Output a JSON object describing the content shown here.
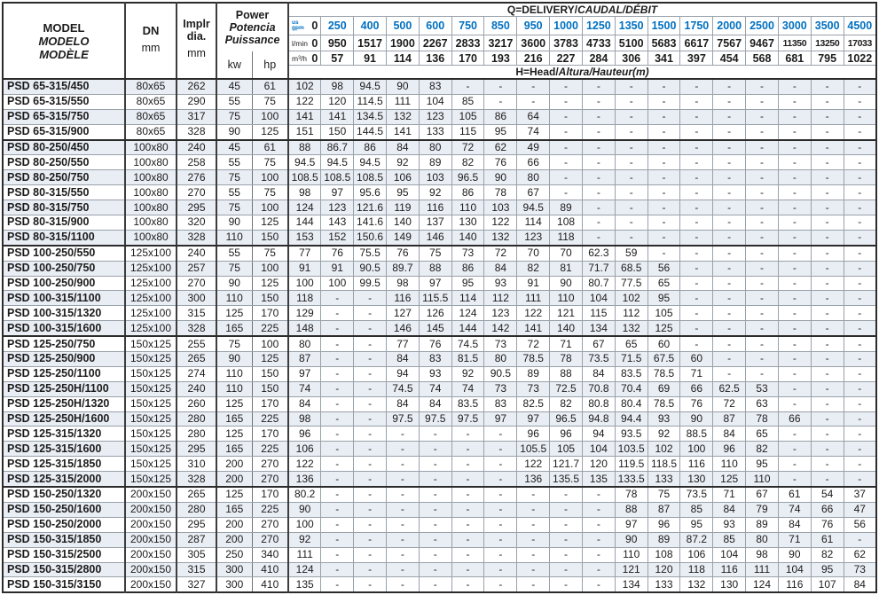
{
  "colors": {
    "accent_blue": "#0070c0",
    "row_shade": "#e9edf4",
    "border_dark": "#2b2b2b",
    "border_light": "#99a1aa"
  },
  "header": {
    "model_line1": "MODEL",
    "model_line2": "MODELO",
    "model_line3": "MODÈLE",
    "dn_label": "DN",
    "dn_unit": "mm",
    "implr_line1": "Implr",
    "implr_line2": "dia.",
    "implr_unit": "mm",
    "power_line1": "Power",
    "power_line2": "Potencia",
    "power_line3": "Puissance",
    "kw_label": "kw",
    "hp_label": "hp",
    "q_title_plain": "Q=DELIVERY/",
    "q_title_italic": "CAUDAL/DÉBIT",
    "h_title_plain": "H=Head/",
    "h_title_italic": "Altura/Hauteur",
    "h_title_suffix": "(m)",
    "unit_rows": [
      {
        "label_top": "us",
        "label_bottom": "gpm",
        "zero": "0",
        "values": [
          "250",
          "400",
          "500",
          "600",
          "750",
          "850",
          "950",
          "1000",
          "1250",
          "1350",
          "1500",
          "1750",
          "2000",
          "2500",
          "3000",
          "3500",
          "4500"
        ]
      },
      {
        "label": "l/min",
        "zero": "0",
        "values": [
          "950",
          "1517",
          "1900",
          "2267",
          "2833",
          "3217",
          "3600",
          "3783",
          "4733",
          "5100",
          "5683",
          "6617",
          "7567",
          "9467",
          "11350",
          "13250",
          "17033"
        ]
      },
      {
        "label": "m³/h",
        "zero": "0",
        "values": [
          "57",
          "91",
          "114",
          "136",
          "170",
          "193",
          "216",
          "227",
          "284",
          "306",
          "341",
          "397",
          "454",
          "568",
          "681",
          "795",
          "1022"
        ]
      }
    ]
  },
  "rows": [
    {
      "model": "PSD 65-315/450",
      "dn": "80x65",
      "dia": "262",
      "kw": "45",
      "hp": "61",
      "heads": [
        "102",
        "98",
        "94.5",
        "90",
        "83",
        "-",
        "-",
        "-",
        "-",
        "-",
        "-",
        "-",
        "-",
        "-",
        "-",
        "-",
        "-",
        "-"
      ]
    },
    {
      "model": "PSD 65-315/550",
      "dn": "80x65",
      "dia": "290",
      "kw": "55",
      "hp": "75",
      "heads": [
        "122",
        "120",
        "114.5",
        "111",
        "104",
        "85",
        "-",
        "-",
        "-",
        "-",
        "-",
        "-",
        "-",
        "-",
        "-",
        "-",
        "-",
        "-"
      ]
    },
    {
      "model": "PSD 65-315/750",
      "dn": "80x65",
      "dia": "317",
      "kw": "75",
      "hp": "100",
      "heads": [
        "141",
        "141",
        "134.5",
        "132",
        "123",
        "105",
        "86",
        "64",
        "-",
        "-",
        "-",
        "-",
        "-",
        "-",
        "-",
        "-",
        "-",
        "-"
      ]
    },
    {
      "model": "PSD 65-315/900",
      "dn": "80x65",
      "dia": "328",
      "kw": "90",
      "hp": "125",
      "heads": [
        "151",
        "150",
        "144.5",
        "141",
        "133",
        "115",
        "95",
        "74",
        "-",
        "-",
        "-",
        "-",
        "-",
        "-",
        "-",
        "-",
        "-",
        "-"
      ],
      "sep": true
    },
    {
      "model": "PSD 80-250/450",
      "dn": "100x80",
      "dia": "240",
      "kw": "45",
      "hp": "61",
      "heads": [
        "88",
        "86.7",
        "86",
        "84",
        "80",
        "72",
        "62",
        "49",
        "-",
        "-",
        "-",
        "-",
        "-",
        "-",
        "-",
        "-",
        "-",
        "-"
      ]
    },
    {
      "model": "PSD 80-250/550",
      "dn": "100x80",
      "dia": "258",
      "kw": "55",
      "hp": "75",
      "heads": [
        "94.5",
        "94.5",
        "94.5",
        "92",
        "89",
        "82",
        "76",
        "66",
        "-",
        "-",
        "-",
        "-",
        "-",
        "-",
        "-",
        "-",
        "-",
        "-"
      ]
    },
    {
      "model": "PSD 80-250/750",
      "dn": "100x80",
      "dia": "276",
      "kw": "75",
      "hp": "100",
      "heads": [
        "108.5",
        "108.5",
        "108.5",
        "106",
        "103",
        "96.5",
        "90",
        "80",
        "-",
        "-",
        "-",
        "-",
        "-",
        "-",
        "-",
        "-",
        "-",
        "-"
      ]
    },
    {
      "model": "PSD 80-315/550",
      "dn": "100x80",
      "dia": "270",
      "kw": "55",
      "hp": "75",
      "heads": [
        "98",
        "97",
        "95.6",
        "95",
        "92",
        "86",
        "78",
        "67",
        "-",
        "-",
        "-",
        "-",
        "-",
        "-",
        "-",
        "-",
        "-",
        "-"
      ]
    },
    {
      "model": "PSD 80-315/750",
      "dn": "100x80",
      "dia": "295",
      "kw": "75",
      "hp": "100",
      "heads": [
        "124",
        "123",
        "121.6",
        "119",
        "116",
        "110",
        "103",
        "94.5",
        "89",
        "-",
        "-",
        "-",
        "-",
        "-",
        "-",
        "-",
        "-",
        "-"
      ]
    },
    {
      "model": "PSD 80-315/900",
      "dn": "100x80",
      "dia": "320",
      "kw": "90",
      "hp": "125",
      "heads": [
        "144",
        "143",
        "141.6",
        "140",
        "137",
        "130",
        "122",
        "114",
        "108",
        "-",
        "-",
        "-",
        "-",
        "-",
        "-",
        "-",
        "-",
        "-"
      ]
    },
    {
      "model": "PSD 80-315/1100",
      "dn": "100x80",
      "dia": "328",
      "kw": "110",
      "hp": "150",
      "heads": [
        "153",
        "152",
        "150.6",
        "149",
        "146",
        "140",
        "132",
        "123",
        "118",
        "-",
        "-",
        "-",
        "-",
        "-",
        "-",
        "-",
        "-",
        "-"
      ],
      "sep": true
    },
    {
      "model": "PSD 100-250/550",
      "dn": "125x100",
      "dia": "240",
      "kw": "55",
      "hp": "75",
      "heads": [
        "77",
        "76",
        "75.5",
        "76",
        "75",
        "73",
        "72",
        "70",
        "70",
        "62.3",
        "59",
        "-",
        "-",
        "-",
        "-",
        "-",
        "-",
        "-"
      ]
    },
    {
      "model": "PSD 100-250/750",
      "dn": "125x100",
      "dia": "257",
      "kw": "75",
      "hp": "100",
      "heads": [
        "91",
        "91",
        "90.5",
        "89.7",
        "88",
        "86",
        "84",
        "82",
        "81",
        "71.7",
        "68.5",
        "56",
        "-",
        "-",
        "-",
        "-",
        "-",
        "-"
      ]
    },
    {
      "model": "PSD 100-250/900",
      "dn": "125x100",
      "dia": "270",
      "kw": "90",
      "hp": "125",
      "heads": [
        "100",
        "100",
        "99.5",
        "98",
        "97",
        "95",
        "93",
        "91",
        "90",
        "80.7",
        "77.5",
        "65",
        "-",
        "-",
        "-",
        "-",
        "-",
        "-"
      ]
    },
    {
      "model": "PSD 100-315/1100",
      "dn": "125x100",
      "dia": "300",
      "kw": "110",
      "hp": "150",
      "heads": [
        "118",
        "-",
        "-",
        "116",
        "115.5",
        "114",
        "112",
        "111",
        "110",
        "104",
        "102",
        "95",
        "-",
        "-",
        "-",
        "-",
        "-",
        "-"
      ]
    },
    {
      "model": "PSD 100-315/1320",
      "dn": "125x100",
      "dia": "315",
      "kw": "125",
      "hp": "170",
      "heads": [
        "129",
        "-",
        "-",
        "127",
        "126",
        "124",
        "123",
        "122",
        "121",
        "115",
        "112",
        "105",
        "-",
        "-",
        "-",
        "-",
        "-",
        "-"
      ]
    },
    {
      "model": "PSD 100-315/1600",
      "dn": "125x100",
      "dia": "328",
      "kw": "165",
      "hp": "225",
      "heads": [
        "148",
        "-",
        "-",
        "146",
        "145",
        "144",
        "142",
        "141",
        "140",
        "134",
        "132",
        "125",
        "-",
        "-",
        "-",
        "-",
        "-",
        "-"
      ],
      "sep": true
    },
    {
      "model": "PSD 125-250/750",
      "dn": "150x125",
      "dia": "255",
      "kw": "75",
      "hp": "100",
      "heads": [
        "80",
        "-",
        "-",
        "77",
        "76",
        "74.5",
        "73",
        "72",
        "71",
        "67",
        "65",
        "60",
        "-",
        "-",
        "-",
        "-",
        "-",
        "-"
      ]
    },
    {
      "model": "PSD 125-250/900",
      "dn": "150x125",
      "dia": "265",
      "kw": "90",
      "hp": "125",
      "heads": [
        "87",
        "-",
        "-",
        "84",
        "83",
        "81.5",
        "80",
        "78.5",
        "78",
        "73.5",
        "71.5",
        "67.5",
        "60",
        "-",
        "-",
        "-",
        "-",
        "-"
      ]
    },
    {
      "model": "PSD 125-250/1100",
      "dn": "150x125",
      "dia": "274",
      "kw": "110",
      "hp": "150",
      "heads": [
        "97",
        "-",
        "-",
        "94",
        "93",
        "92",
        "90.5",
        "89",
        "88",
        "84",
        "83.5",
        "78.5",
        "71",
        "-",
        "-",
        "-",
        "-",
        "-"
      ]
    },
    {
      "model": "PSD 125-250H/1100",
      "dn": "150x125",
      "dia": "240",
      "kw": "110",
      "hp": "150",
      "heads": [
        "74",
        "-",
        "-",
        "74.5",
        "74",
        "74",
        "73",
        "73",
        "72.5",
        "70.8",
        "70.4",
        "69",
        "66",
        "62.5",
        "53",
        "-",
        "-",
        "-"
      ]
    },
    {
      "model": "PSD 125-250H/1320",
      "dn": "150x125",
      "dia": "260",
      "kw": "125",
      "hp": "170",
      "heads": [
        "84",
        "-",
        "-",
        "84",
        "84",
        "83.5",
        "83",
        "82.5",
        "82",
        "80.8",
        "80.4",
        "78.5",
        "76",
        "72",
        "63",
        "-",
        "-",
        "-"
      ]
    },
    {
      "model": "PSD 125-250H/1600",
      "dn": "150x125",
      "dia": "280",
      "kw": "165",
      "hp": "225",
      "heads": [
        "98",
        "-",
        "-",
        "97.5",
        "97.5",
        "97.5",
        "97",
        "97",
        "96.5",
        "94.8",
        "94.4",
        "93",
        "90",
        "87",
        "78",
        "66",
        "-",
        "-"
      ]
    },
    {
      "model": "PSD 125-315/1320",
      "dn": "150x125",
      "dia": "280",
      "kw": "125",
      "hp": "170",
      "heads": [
        "96",
        "-",
        "-",
        "-",
        "-",
        "-",
        "-",
        "96",
        "96",
        "94",
        "93.5",
        "92",
        "88.5",
        "84",
        "65",
        "-",
        "-",
        "-"
      ]
    },
    {
      "model": "PSD 125-315/1600",
      "dn": "150x125",
      "dia": "295",
      "kw": "165",
      "hp": "225",
      "heads": [
        "106",
        "-",
        "-",
        "-",
        "-",
        "-",
        "-",
        "105.5",
        "105",
        "104",
        "103.5",
        "102",
        "100",
        "96",
        "82",
        "-",
        "-",
        "-"
      ]
    },
    {
      "model": "PSD 125-315/1850",
      "dn": "150x125",
      "dia": "310",
      "kw": "200",
      "hp": "270",
      "heads": [
        "122",
        "-",
        "-",
        "-",
        "-",
        "-",
        "-",
        "122",
        "121.7",
        "120",
        "119.5",
        "118.5",
        "116",
        "110",
        "95",
        "-",
        "-",
        "-"
      ]
    },
    {
      "model": "PSD 125-315/2000",
      "dn": "150x125",
      "dia": "328",
      "kw": "200",
      "hp": "270",
      "heads": [
        "136",
        "-",
        "-",
        "-",
        "-",
        "-",
        "-",
        "136",
        "135.5",
        "135",
        "133.5",
        "133",
        "130",
        "125",
        "110",
        "-",
        "-",
        "-"
      ],
      "sep": true
    },
    {
      "model": "PSD 150-250/1320",
      "dn": "200x150",
      "dia": "265",
      "kw": "125",
      "hp": "170",
      "heads": [
        "80.2",
        "-",
        "-",
        "-",
        "-",
        "-",
        "-",
        "-",
        "-",
        "-",
        "78",
        "75",
        "73.5",
        "71",
        "67",
        "61",
        "54",
        "37"
      ]
    },
    {
      "model": "PSD 150-250/1600",
      "dn": "200x150",
      "dia": "280",
      "kw": "165",
      "hp": "225",
      "heads": [
        "90",
        "-",
        "-",
        "-",
        "-",
        "-",
        "-",
        "-",
        "-",
        "-",
        "88",
        "87",
        "85",
        "84",
        "79",
        "74",
        "66",
        "47"
      ]
    },
    {
      "model": "PSD 150-250/2000",
      "dn": "200x150",
      "dia": "295",
      "kw": "200",
      "hp": "270",
      "heads": [
        "100",
        "-",
        "-",
        "-",
        "-",
        "-",
        "-",
        "-",
        "-",
        "-",
        "97",
        "96",
        "95",
        "93",
        "89",
        "84",
        "76",
        "56"
      ]
    },
    {
      "model": "PSD 150-315/1850",
      "dn": "200x150",
      "dia": "287",
      "kw": "200",
      "hp": "270",
      "heads": [
        "92",
        "-",
        "-",
        "-",
        "-",
        "-",
        "-",
        "-",
        "-",
        "-",
        "90",
        "89",
        "87.2",
        "85",
        "80",
        "71",
        "61",
        "-"
      ]
    },
    {
      "model": "PSD 150-315/2500",
      "dn": "200x150",
      "dia": "305",
      "kw": "250",
      "hp": "340",
      "heads": [
        "111",
        "-",
        "-",
        "-",
        "-",
        "-",
        "-",
        "-",
        "-",
        "-",
        "110",
        "108",
        "106",
        "104",
        "98",
        "90",
        "82",
        "62"
      ]
    },
    {
      "model": "PSD 150-315/2800",
      "dn": "200x150",
      "dia": "315",
      "kw": "300",
      "hp": "410",
      "heads": [
        "124",
        "-",
        "-",
        "-",
        "-",
        "-",
        "-",
        "-",
        "-",
        "-",
        "121",
        "120",
        "118",
        "116",
        "111",
        "104",
        "95",
        "73"
      ]
    },
    {
      "model": "PSD 150-315/3150",
      "dn": "200x150",
      "dia": "327",
      "kw": "300",
      "hp": "410",
      "heads": [
        "135",
        "-",
        "-",
        "-",
        "-",
        "-",
        "-",
        "-",
        "-",
        "-",
        "134",
        "133",
        "132",
        "130",
        "124",
        "116",
        "107",
        "84"
      ]
    }
  ]
}
